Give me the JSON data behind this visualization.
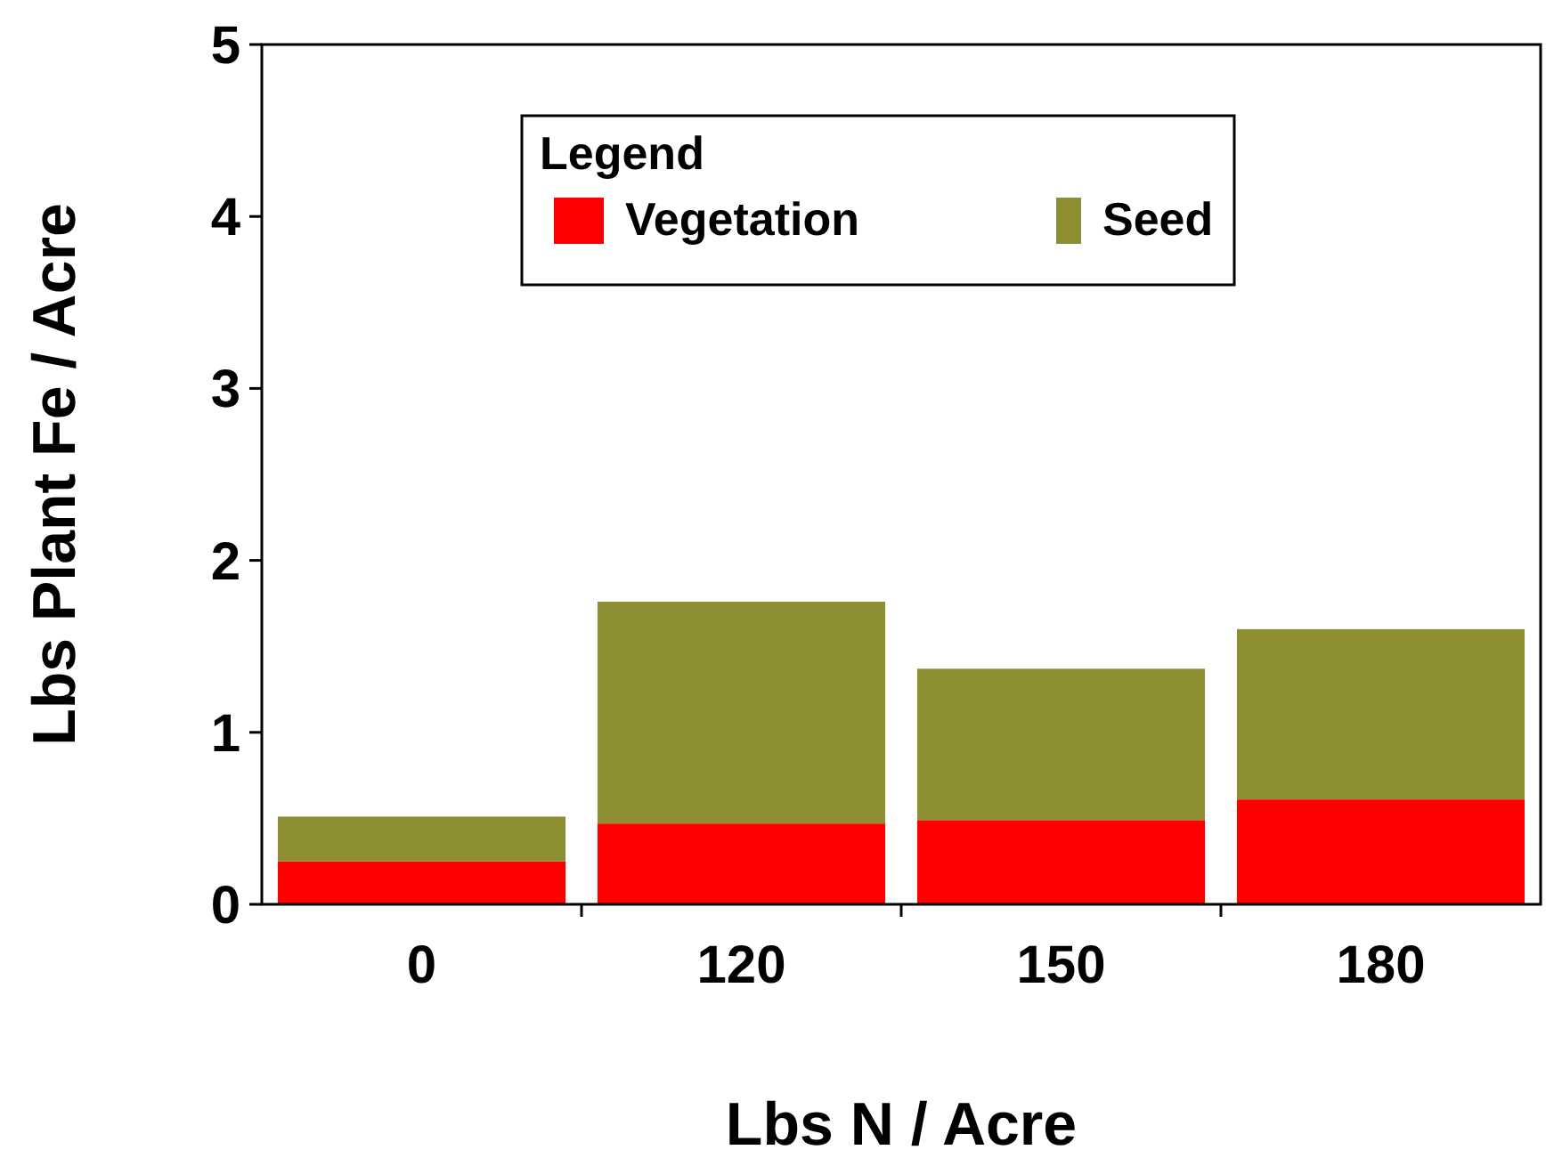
{
  "chart_data": {
    "type": "bar",
    "stacked": true,
    "xlabel": "Lbs N / Acre",
    "ylabel": "Lbs Plant Fe / Acre",
    "legend_title": "Legend",
    "legend": "top",
    "categories": [
      "0",
      "120",
      "150",
      "180"
    ],
    "series": [
      {
        "name": "Vegetation",
        "color": "#ff0000",
        "values": [
          0.25,
          0.47,
          0.49,
          0.61
        ]
      },
      {
        "name": "Seed",
        "color": "#8e8e32",
        "values": [
          0.26,
          1.29,
          0.88,
          0.99
        ]
      }
    ],
    "ylim": [
      0,
      5
    ],
    "yticks": [
      0,
      1,
      2,
      3,
      4,
      5
    ]
  }
}
